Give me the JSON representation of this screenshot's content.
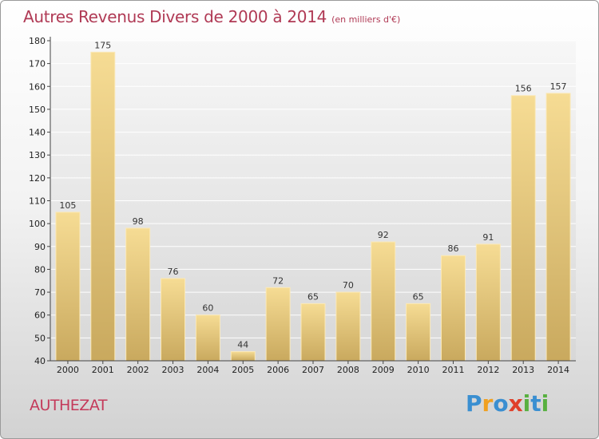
{
  "chart_data": {
    "type": "bar",
    "title": "Autres Revenus Divers de 2000 à 2014",
    "subtitle": "(en milliers d'€)",
    "categories": [
      "2000",
      "2001",
      "2002",
      "2003",
      "2004",
      "2005",
      "2006",
      "2007",
      "2008",
      "2009",
      "2010",
      "2011",
      "2012",
      "2013",
      "2014"
    ],
    "values": [
      105,
      175,
      98,
      76,
      60,
      44,
      72,
      65,
      70,
      92,
      65,
      86,
      91,
      156,
      157
    ],
    "data_labels": [
      "105",
      "175",
      "98",
      "76",
      "60",
      "44",
      "72",
      "65",
      "70",
      "92",
      "65",
      "86",
      "91",
      "156",
      "157"
    ],
    "ylim": [
      40,
      180
    ],
    "yticks": [
      40,
      50,
      60,
      70,
      80,
      90,
      100,
      110,
      120,
      130,
      140,
      150,
      160,
      170,
      180
    ],
    "xlabel": "",
    "ylabel": "",
    "grid": true,
    "bar_color": "#e9cd82"
  },
  "footer": {
    "town": "AUTHEZAT",
    "logo_letters": [
      {
        "char": "P",
        "color": "#3a8fd1"
      },
      {
        "char": "r",
        "color": "#f0a020"
      },
      {
        "char": "o",
        "color": "#3a8fd1"
      },
      {
        "char": "x",
        "color": "#e0402a"
      },
      {
        "char": "i",
        "color": "#58b040"
      },
      {
        "char": "t",
        "color": "#3a8fd1"
      },
      {
        "char": "i",
        "color": "#58b040"
      }
    ]
  }
}
